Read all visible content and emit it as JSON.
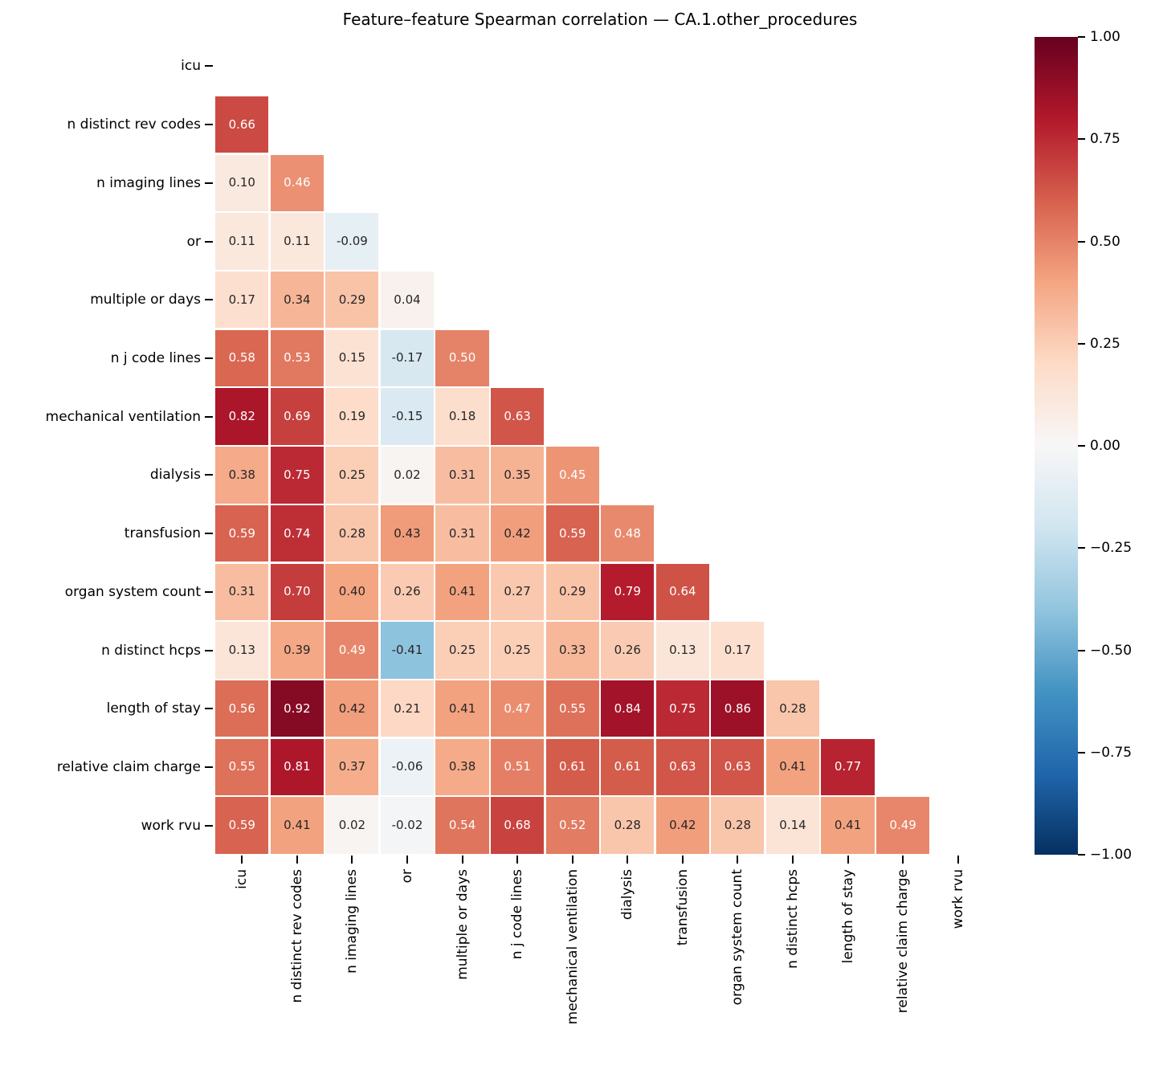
{
  "title": "Feature–feature Spearman correlation — CA.1.other_procedures",
  "chart_data": {
    "type": "heatmap",
    "subtype": "lower_triangle_correlation_matrix",
    "correlation_method": "Spearman",
    "labels": [
      "icu",
      "n distinct rev codes",
      "n imaging lines",
      "or",
      "multiple or days",
      "n j code lines",
      "mechanical ventilation",
      "dialysis",
      "transfusion",
      "organ system count",
      "n distinct hcps",
      "length of stay",
      "relative claim charge",
      "work rvu"
    ],
    "matrix": [
      [],
      [
        0.66
      ],
      [
        0.1,
        0.46
      ],
      [
        0.11,
        0.11,
        -0.09
      ],
      [
        0.17,
        0.34,
        0.29,
        0.04
      ],
      [
        0.58,
        0.53,
        0.15,
        -0.17,
        0.5
      ],
      [
        0.82,
        0.69,
        0.19,
        -0.15,
        0.18,
        0.63
      ],
      [
        0.38,
        0.75,
        0.25,
        0.02,
        0.31,
        0.35,
        0.45
      ],
      [
        0.59,
        0.74,
        0.28,
        0.43,
        0.31,
        0.42,
        0.59,
        0.48
      ],
      [
        0.31,
        0.7,
        0.4,
        0.26,
        0.41,
        0.27,
        0.29,
        0.79,
        0.64
      ],
      [
        0.13,
        0.39,
        0.49,
        -0.41,
        0.25,
        0.25,
        0.33,
        0.26,
        0.13,
        0.17
      ],
      [
        0.56,
        0.92,
        0.42,
        0.21,
        0.41,
        0.47,
        0.55,
        0.84,
        0.75,
        0.86,
        0.28
      ],
      [
        0.55,
        0.81,
        0.37,
        -0.06,
        0.38,
        0.51,
        0.61,
        0.61,
        0.63,
        0.63,
        0.41,
        0.77
      ],
      [
        0.59,
        0.41,
        0.02,
        -0.02,
        0.54,
        0.68,
        0.52,
        0.28,
        0.42,
        0.28,
        0.14,
        0.41,
        0.49
      ]
    ],
    "vmin": -1,
    "vmax": 1,
    "colormap": "RdBu_r",
    "colormap_anchors": [
      "#053061",
      "#2166ac",
      "#4393c3",
      "#92c5de",
      "#d1e5f0",
      "#f7f7f7",
      "#fddbc7",
      "#f4a582",
      "#d6604d",
      "#b2182b",
      "#67001f"
    ],
    "colorbar_ticks": [
      "1.00",
      "0.75",
      "0.50",
      "0.25",
      "0.00",
      "−0.25",
      "−0.50",
      "−0.75",
      "−1.00"
    ],
    "annotation_format": ".2f",
    "annotation_colors": {
      "light": "#ffffff",
      "dark": "#262626"
    },
    "masked": "diagonal_and_upper_triangle",
    "legend_position": "right_colorbar",
    "grid": false
  }
}
